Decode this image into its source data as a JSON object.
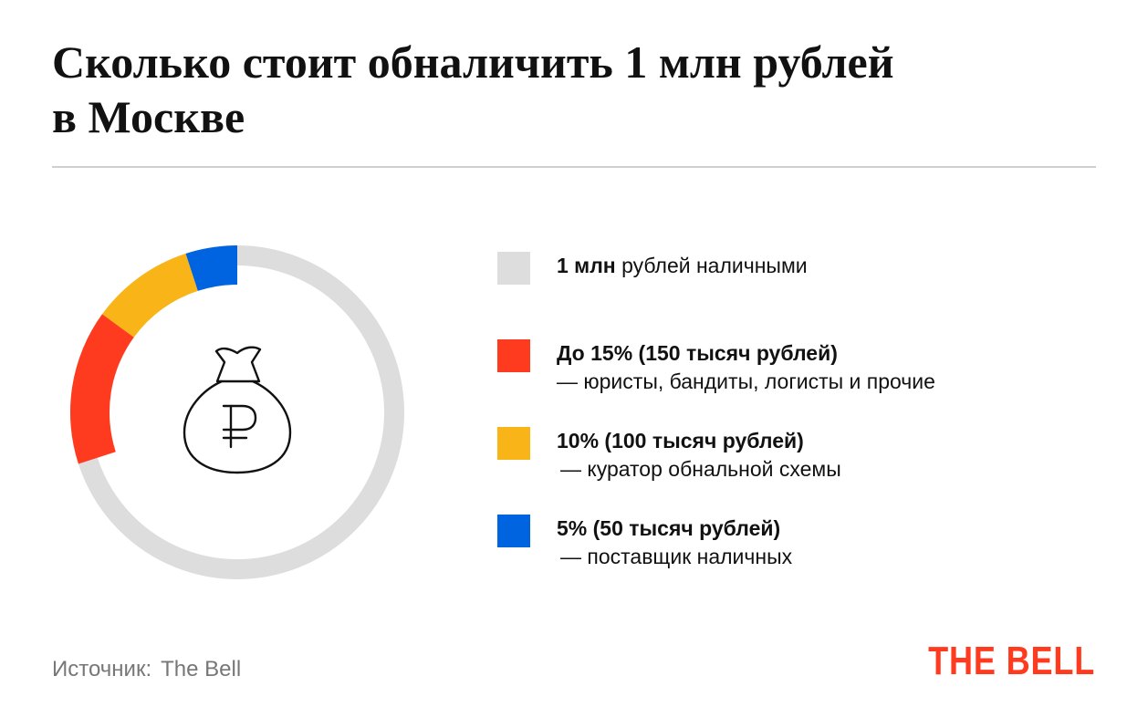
{
  "header": {
    "title_line1": "Сколько стоит обналичить 1 млн рублей",
    "title_line2": "в Москве"
  },
  "chart_data": {
    "type": "pie",
    "total": {
      "label_bold": "1 млн",
      "label_rest": " рублей наличными",
      "color": "#dddddd"
    },
    "series": [
      {
        "title": "До 15% (150 тысяч рублей)",
        "note": "— юристы, бандиты, логисты и прочие",
        "value": 15,
        "color": "#ff3b1f"
      },
      {
        "title": "10% (100 тысяч рублей)",
        "note": "— куратор обнальной схемы",
        "value": 10,
        "color": "#f9b418"
      },
      {
        "title": "5% (50 тысяч рублей)",
        "note": "— поставщик наличных",
        "value": 5,
        "color": "#0064e1"
      }
    ],
    "center_icon": "money-bag-ruble-icon"
  },
  "footer": {
    "source_label": "Источник:",
    "source_value": "The Bell",
    "brand": "THE BELL",
    "brand_color": "#ff3b1f"
  }
}
